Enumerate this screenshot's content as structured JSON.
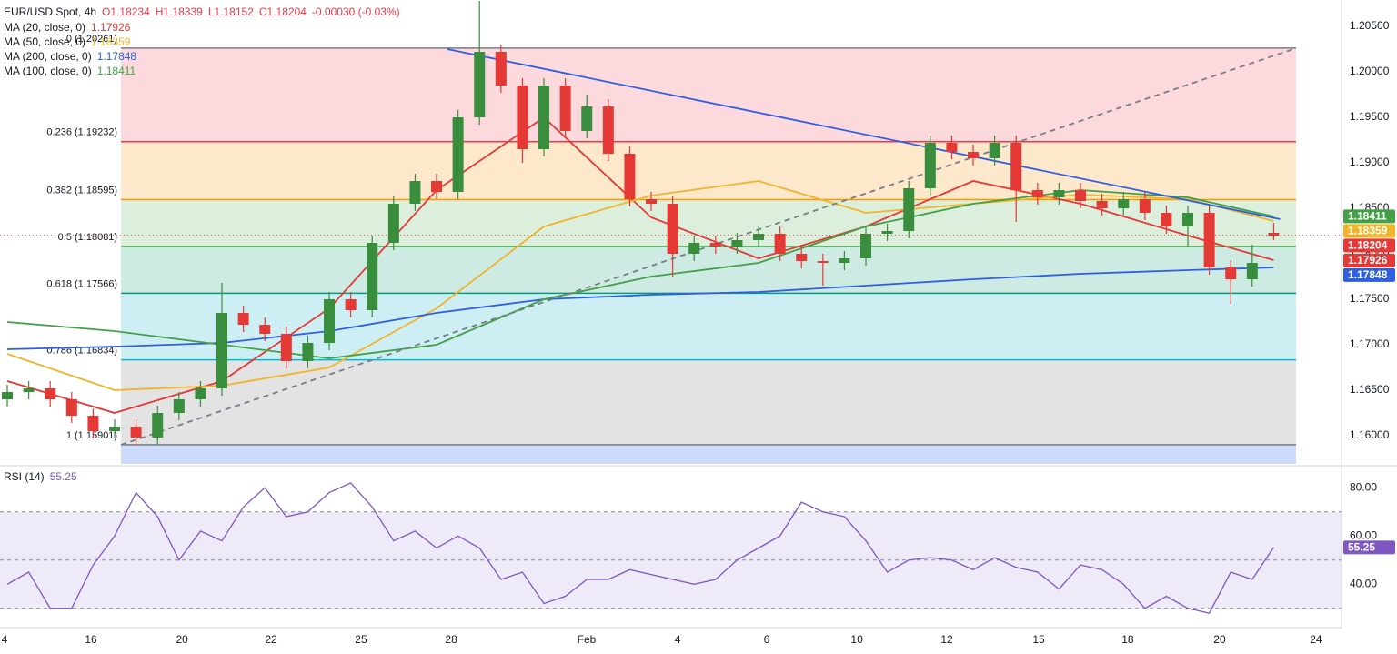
{
  "header": {
    "symbol": "EUR/USD Spot, 4h",
    "open": "O1.18234",
    "high": "H1.18339",
    "low": "L1.18152",
    "close": "C1.18204",
    "change": "-0.00030 (-0.03%)"
  },
  "chart_data": [
    {
      "type": "candlestick",
      "up_color": "#388e3c",
      "down_color": "#e53935",
      "open": [
        1.164,
        1.1648,
        1.1652,
        1.164,
        1.1622,
        1.1605,
        1.161,
        1.1598,
        1.1625,
        1.164,
        1.1652,
        1.1735,
        1.1722,
        1.1712,
        1.1682,
        1.1702,
        1.175,
        1.1738,
        1.1812,
        1.1855,
        1.188,
        1.1868,
        1.195,
        1.2022,
        1.1985,
        1.1915,
        1.1985,
        1.1935,
        1.1962,
        1.191,
        1.186,
        1.1855,
        1.18,
        1.1812,
        1.1808,
        1.1815,
        1.1822,
        1.18,
        1.1792,
        1.179,
        1.1795,
        1.1822,
        1.1825,
        1.1872,
        1.1922,
        1.1912,
        1.1905,
        1.1922,
        1.187,
        1.1862,
        1.187,
        1.1858,
        1.185,
        1.186,
        1.1845,
        1.183,
        1.1845,
        1.1785,
        1.1772,
        1.1823
      ],
      "high": [
        1.1656,
        1.166,
        1.166,
        1.1648,
        1.163,
        1.1618,
        1.1618,
        1.1633,
        1.1648,
        1.166,
        1.1768,
        1.1743,
        1.173,
        1.172,
        1.171,
        1.1758,
        1.1758,
        1.182,
        1.1863,
        1.1888,
        1.1888,
        1.1958,
        1.2078,
        1.203,
        1.1993,
        1.1993,
        1.1993,
        1.1975,
        1.197,
        1.1918,
        1.1868,
        1.1863,
        1.182,
        1.182,
        1.1823,
        1.183,
        1.183,
        1.1808,
        1.18,
        1.1803,
        1.183,
        1.1833,
        1.188,
        1.193,
        1.193,
        1.192,
        1.193,
        1.193,
        1.1878,
        1.1878,
        1.1878,
        1.1866,
        1.1868,
        1.1868,
        1.1853,
        1.1853,
        1.1853,
        1.1793,
        1.181,
        1.1834
      ],
      "low": [
        1.1632,
        1.164,
        1.1632,
        1.1614,
        1.1597,
        1.1597,
        1.159,
        1.159,
        1.1617,
        1.1632,
        1.1644,
        1.1714,
        1.1704,
        1.1674,
        1.1674,
        1.1694,
        1.173,
        1.173,
        1.1804,
        1.1847,
        1.186,
        1.186,
        1.1942,
        1.1977,
        1.19,
        1.1907,
        1.1927,
        1.1927,
        1.1902,
        1.1852,
        1.1847,
        1.1775,
        1.1792,
        1.18,
        1.18,
        1.1807,
        1.1792,
        1.1784,
        1.1765,
        1.1782,
        1.1787,
        1.1814,
        1.1817,
        1.1864,
        1.1904,
        1.1897,
        1.1897,
        1.1835,
        1.1854,
        1.1854,
        1.185,
        1.1842,
        1.1842,
        1.1837,
        1.1822,
        1.1808,
        1.1777,
        1.1745,
        1.1764,
        1.1815
      ],
      "close": [
        1.1648,
        1.1652,
        1.164,
        1.1622,
        1.1605,
        1.161,
        1.1598,
        1.1625,
        1.164,
        1.1652,
        1.1735,
        1.1722,
        1.1712,
        1.1682,
        1.1702,
        1.175,
        1.1738,
        1.1812,
        1.1855,
        1.188,
        1.1868,
        1.195,
        1.2022,
        1.1985,
        1.1915,
        1.1985,
        1.1935,
        1.1962,
        1.191,
        1.186,
        1.1855,
        1.18,
        1.1812,
        1.1808,
        1.1815,
        1.1822,
        1.18,
        1.1792,
        1.179,
        1.1795,
        1.1822,
        1.1825,
        1.1872,
        1.1922,
        1.1912,
        1.1905,
        1.1922,
        1.187,
        1.1862,
        1.187,
        1.1858,
        1.185,
        1.186,
        1.1845,
        1.183,
        1.1845,
        1.1785,
        1.1772,
        1.179,
        1.182
      ],
      "xlim": [
        -0.34,
        62.16
      ],
      "xticks": [
        {
          "value": -0.13,
          "label": "4"
        },
        {
          "value": 3.9,
          "label": "16"
        },
        {
          "value": 8.14,
          "label": "20"
        },
        {
          "value": 12.29,
          "label": "22"
        },
        {
          "value": 16.48,
          "label": "25"
        },
        {
          "value": 20.68,
          "label": "28"
        },
        {
          "value": 26.99,
          "label": "Feb"
        },
        {
          "value": 31.23,
          "label": "4"
        },
        {
          "value": 35.38,
          "label": "6"
        },
        {
          "value": 39.58,
          "label": "10"
        },
        {
          "value": 43.77,
          "label": "12"
        },
        {
          "value": 48.05,
          "label": "15"
        },
        {
          "value": 52.2,
          "label": "18"
        },
        {
          "value": 56.48,
          "label": "20"
        },
        {
          "value": 60.97,
          "label": "24"
        }
      ],
      "ylim": [
        1.1569,
        1.2079
      ],
      "yticks": [
        {
          "value": 1.205,
          "label": "1.20500"
        },
        {
          "value": 1.2,
          "label": "1.20000"
        },
        {
          "value": 1.195,
          "label": "1.19500"
        },
        {
          "value": 1.19,
          "label": "1.19000"
        },
        {
          "value": 1.185,
          "label": "1.18500"
        },
        {
          "value": 1.18,
          "label": "1.18000"
        },
        {
          "value": 1.175,
          "label": "1.17500"
        },
        {
          "value": 1.17,
          "label": "1.17000"
        },
        {
          "value": 1.165,
          "label": "1.16500"
        },
        {
          "value": 1.16,
          "label": "1.16000"
        }
      ],
      "moving_averages": [
        {
          "name": "MA (20, close, 0)",
          "color": "#e53935",
          "last": 1.17926,
          "x": [
            0,
            5,
            10,
            15,
            20,
            25,
            30,
            35,
            40,
            45,
            50,
            55,
            59
          ],
          "values": [
            1.166,
            1.1625,
            1.166,
            1.174,
            1.187,
            1.195,
            1.184,
            1.1795,
            1.183,
            1.188,
            1.1855,
            1.182,
            1.1793
          ]
        },
        {
          "name": "MA (50, close, 0)",
          "color": "#f0b429",
          "last": 1.18359,
          "x": [
            0,
            5,
            10,
            15,
            20,
            25,
            30,
            35,
            40,
            45,
            50,
            55,
            59
          ],
          "values": [
            1.169,
            1.165,
            1.1655,
            1.1675,
            1.174,
            1.183,
            1.1864,
            1.188,
            1.1845,
            1.1855,
            1.1865,
            1.186,
            1.1836
          ]
        },
        {
          "name": "MA (200, close, 0)",
          "color": "#2f5fe0",
          "last": 1.17848,
          "x": [
            0,
            5,
            10,
            15,
            20,
            25,
            30,
            35,
            40,
            45,
            50,
            55,
            59
          ],
          "values": [
            1.1695,
            1.1698,
            1.1702,
            1.1715,
            1.1735,
            1.175,
            1.1755,
            1.1758,
            1.1765,
            1.1772,
            1.1778,
            1.1782,
            1.1785
          ]
        },
        {
          "name": "MA (100, close, 0)",
          "color": "#43a047",
          "last": 1.18411,
          "x": [
            0,
            5,
            10,
            15,
            20,
            25,
            30,
            35,
            40,
            45,
            50,
            55,
            59
          ],
          "values": [
            1.1725,
            1.1715,
            1.17,
            1.1685,
            1.17,
            1.175,
            1.1775,
            1.179,
            1.183,
            1.1855,
            1.187,
            1.1862,
            1.1841
          ]
        }
      ],
      "fib_x": [
        5.3,
        60.04
      ],
      "fib_levels": [
        {
          "label": "0 (1.20261)",
          "value": 1.20261,
          "color": "#787b86",
          "fill": "#fbd9dc"
        },
        {
          "label": "0.236 (1.19232)",
          "value": 1.19232,
          "color": "#f23645",
          "fill": "#fde8cc"
        },
        {
          "label": "0.382 (1.18595)",
          "value": 1.18595,
          "color": "#ff9800",
          "fill": "#dcefdc"
        },
        {
          "label": "0.5 (1.18081)",
          "value": 1.18081,
          "color": "#4caf50",
          "fill": "#cdebe3"
        },
        {
          "label": "0.618 (1.17566)",
          "value": 1.17566,
          "color": "#089981",
          "fill": "#cdeff4"
        },
        {
          "label": "0.786 (1.16834)",
          "value": 1.16834,
          "color": "#00bcd4",
          "fill": "#e3e3e3"
        },
        {
          "label": "1 (1.15901)",
          "value": 1.15901,
          "color": "#787b86",
          "fill": "#cbdaf8"
        }
      ],
      "lines": [
        {
          "color": "#2f5fe0",
          "dash": false,
          "x": [
            20.5,
            59.3
          ],
          "values": [
            1.2025,
            1.1838
          ]
        },
        {
          "color": "#787b86",
          "dash": true,
          "x": [
            5.3,
            60.04
          ],
          "values": [
            1.159,
            1.2026
          ]
        }
      ],
      "last_price": 1.18204,
      "last_color": "#e53935"
    },
    {
      "type": "line",
      "title": "RSI (14)",
      "color": "#7e57c2",
      "band_color": "#efeaf8",
      "values": [
        40,
        45,
        30,
        30,
        48,
        60,
        78,
        68,
        50,
        62,
        58,
        72,
        80,
        68,
        70,
        78,
        82,
        72,
        58,
        62,
        55,
        60,
        55,
        42,
        45,
        32,
        35,
        42,
        42,
        46,
        44,
        42,
        40,
        42,
        50,
        55,
        60,
        74,
        70,
        68,
        58,
        45,
        50,
        51,
        50,
        46,
        51,
        47,
        45,
        38,
        48,
        46,
        40,
        30,
        35,
        30,
        28,
        45,
        42,
        55.25
      ],
      "levels": [
        70,
        50,
        30
      ],
      "ylim": [
        22,
        88
      ],
      "yticks": [
        {
          "value": 80,
          "label": "80.00"
        },
        {
          "value": 60,
          "label": "60.00"
        },
        {
          "value": 40,
          "label": "40.00"
        }
      ]
    }
  ]
}
